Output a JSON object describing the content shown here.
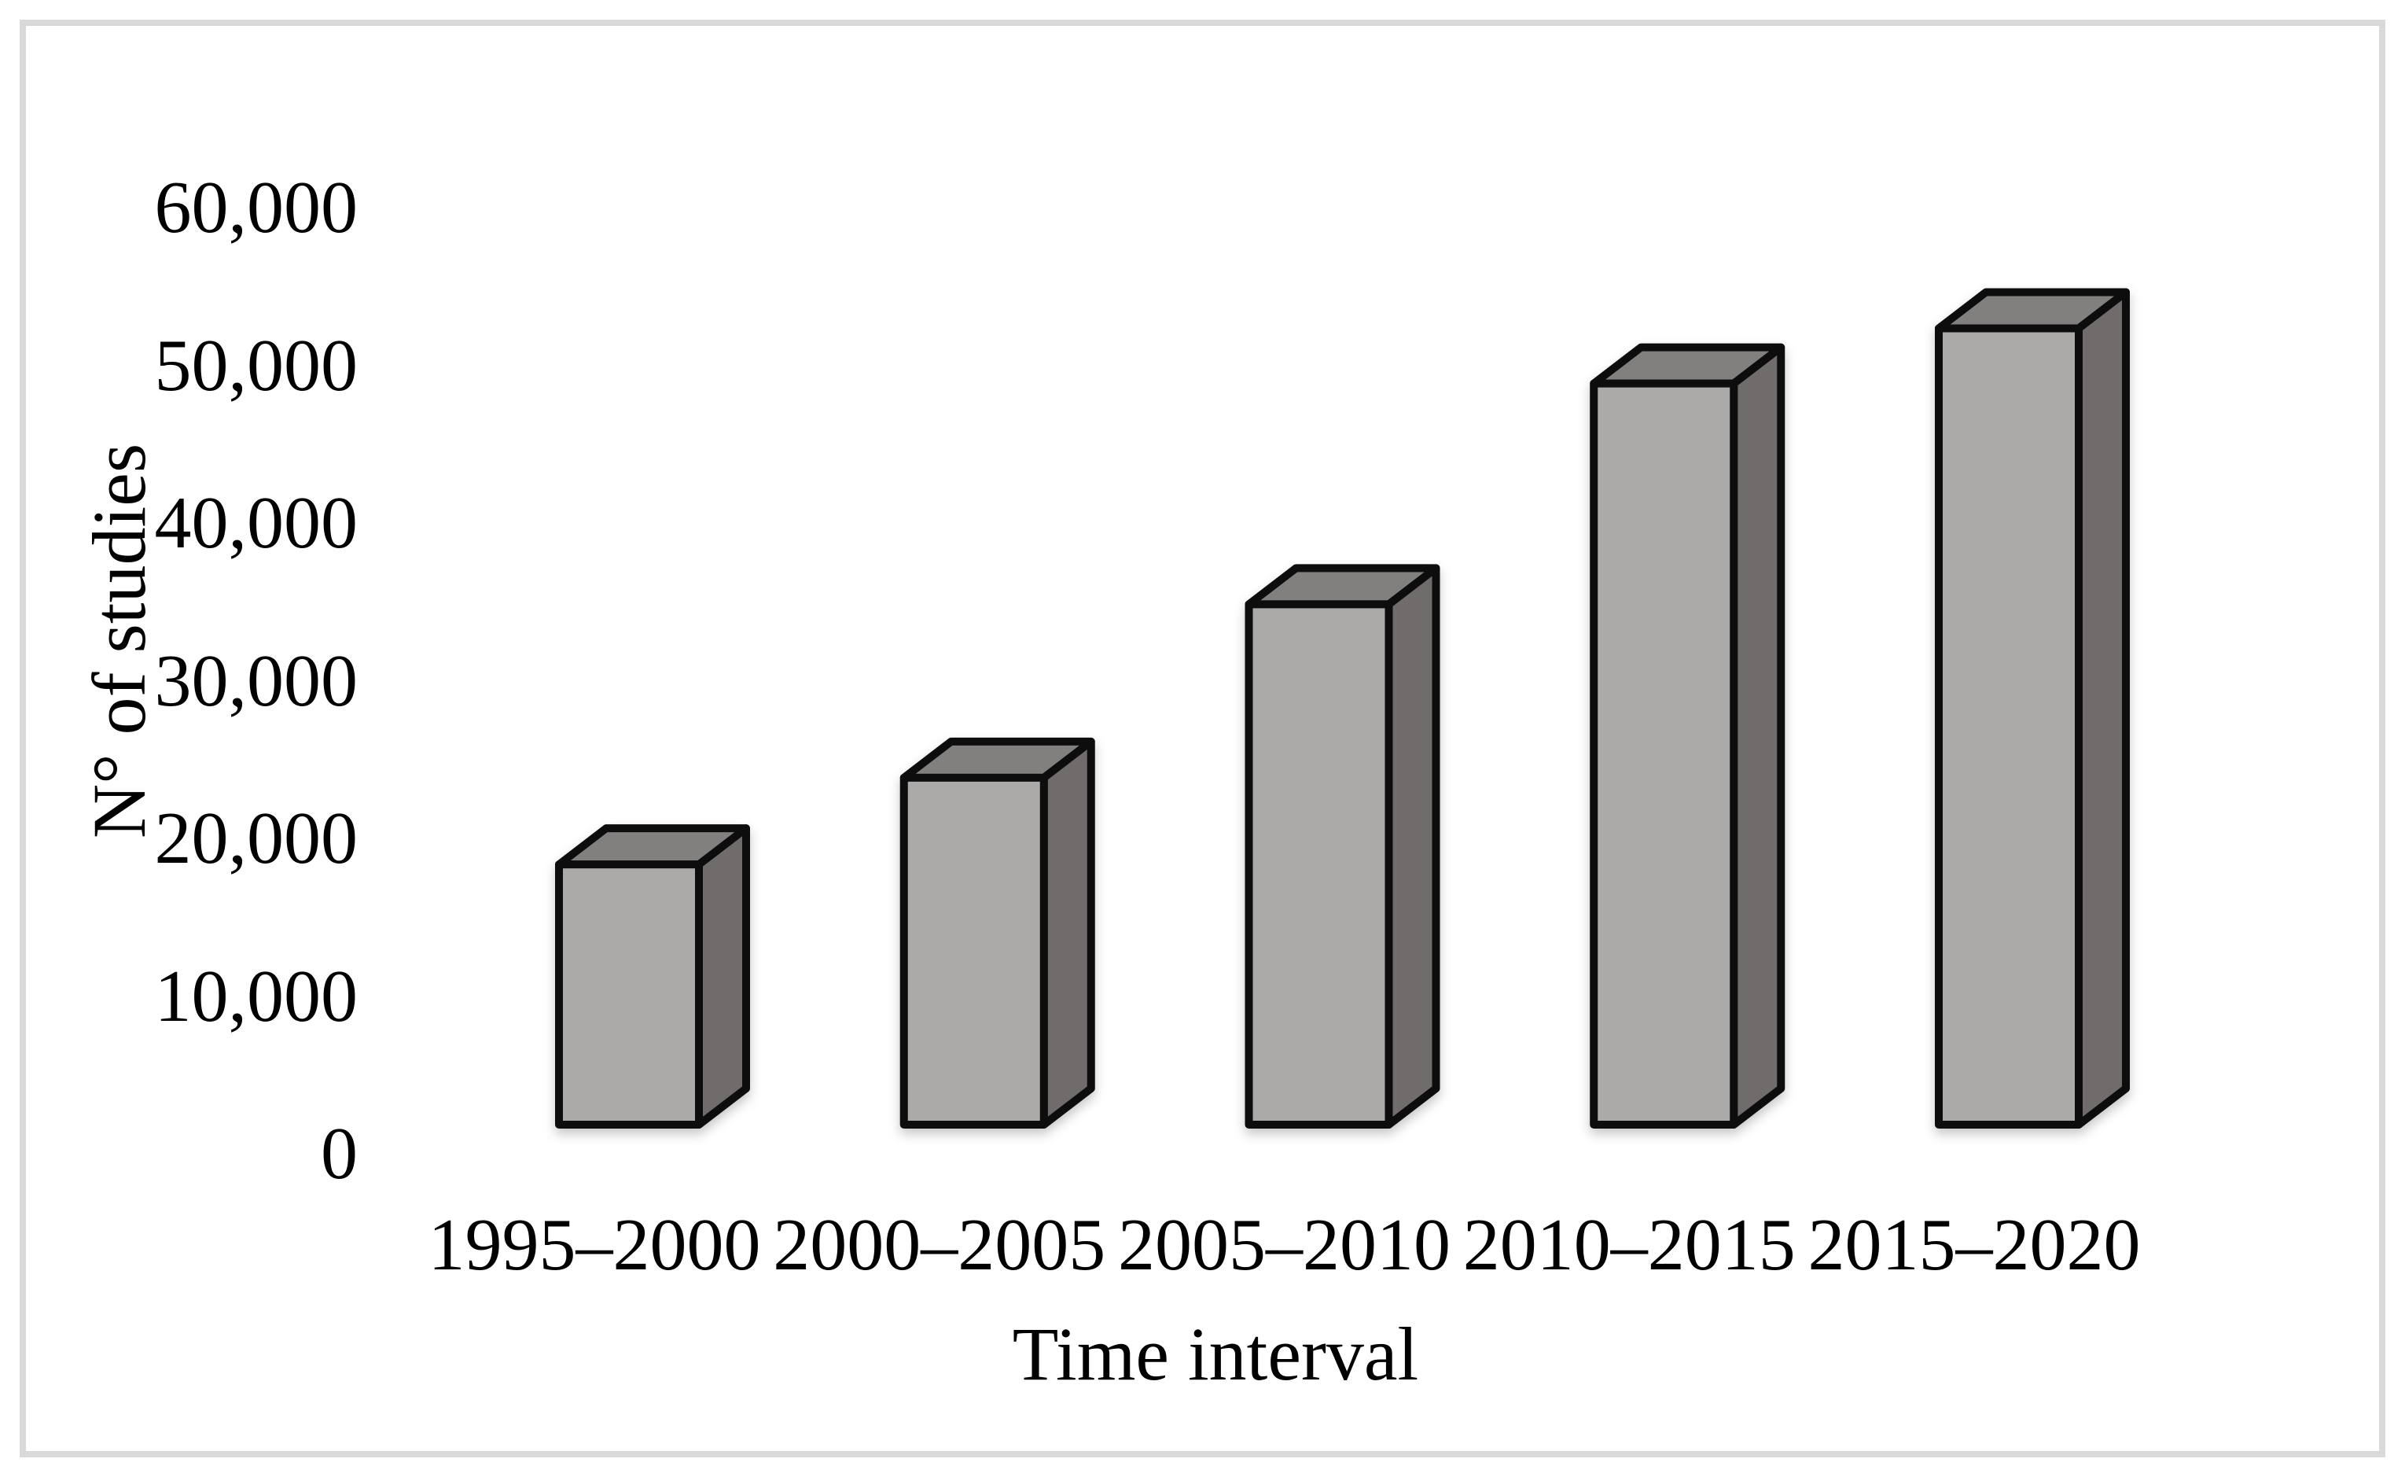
{
  "figure": {
    "background": "#ffffff",
    "frame_color": "#d9d9d9"
  },
  "chart_data": {
    "type": "bar",
    "variant": "3d-column",
    "title": "",
    "xlabel": "Time interval",
    "ylabel": "N° of studies",
    "categories": [
      "1995–2000",
      "2000–2005",
      "2005–2010",
      "2010–2015",
      "2015–2020"
    ],
    "values": [
      16500,
      22000,
      33000,
      47000,
      50500
    ],
    "ylim": [
      0,
      60000
    ],
    "ytick_step": 10000,
    "ytick_labels": [
      "0",
      "10,000",
      "20,000",
      "30,000",
      "40,000",
      "50,000",
      "60,000"
    ],
    "grid": false,
    "legend": false,
    "colors": {
      "bar_front": "#ACA9A9",
      "bar_side": "#6F6C6C",
      "bar_top": "#827F7F",
      "bar_outline": "#0D0D0D"
    }
  }
}
